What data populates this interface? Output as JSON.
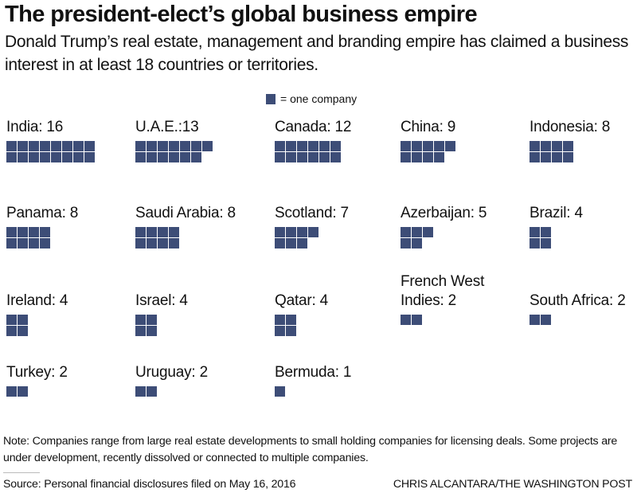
{
  "header": {
    "title": "The president-elect’s global business empire",
    "subtitle": "Donald Trump’s real estate, management and branding empire has claimed a business interest in at least 18 countries or territories."
  },
  "legend": {
    "icon": "square-unit-icon",
    "label": "= one company",
    "color": "#3d4d77"
  },
  "chart_data": {
    "type": "waffle",
    "title": "The president-elect’s global business empire",
    "unit": "one company",
    "categories": [
      "India",
      "U.A.E.",
      "Canada",
      "China",
      "Indonesia",
      "Panama",
      "Saudi Arabia",
      "Scotland",
      "Azerbaijan",
      "Brazil",
      "Ireland",
      "Israel",
      "Qatar",
      "French West Indies",
      "South Africa",
      "Turkey",
      "Uruguay",
      "Bermuda"
    ],
    "values": [
      16,
      13,
      12,
      9,
      8,
      8,
      8,
      7,
      5,
      4,
      4,
      4,
      4,
      2,
      2,
      2,
      2,
      1
    ],
    "labels": [
      "India: 16",
      "U.A.E.:13",
      "Canada: 12",
      "China: 9",
      "Indonesia: 8",
      "Panama: 8",
      "Saudi Arabia: 8",
      "Scotland: 7",
      "Azerbaijan: 5",
      "Brazil: 4",
      "Ireland: 4",
      "Israel: 4",
      "Qatar: 4",
      "French West\nIndies: 2",
      "South Africa: 2",
      "Turkey: 2",
      "Uruguay: 2",
      "Bermuda: 1"
    ],
    "color": "#3d4d77"
  },
  "footer": {
    "note": "Note: Companies range from large real estate developments to small holding companies for licensing deals. Some projects are under development, recently dissolved or connected to multiple companies.",
    "source": "Source: Personal financial disclosures filed on May 16, 2016",
    "credit": "CHRIS ALCANTARA/THE WASHINGTON POST"
  }
}
